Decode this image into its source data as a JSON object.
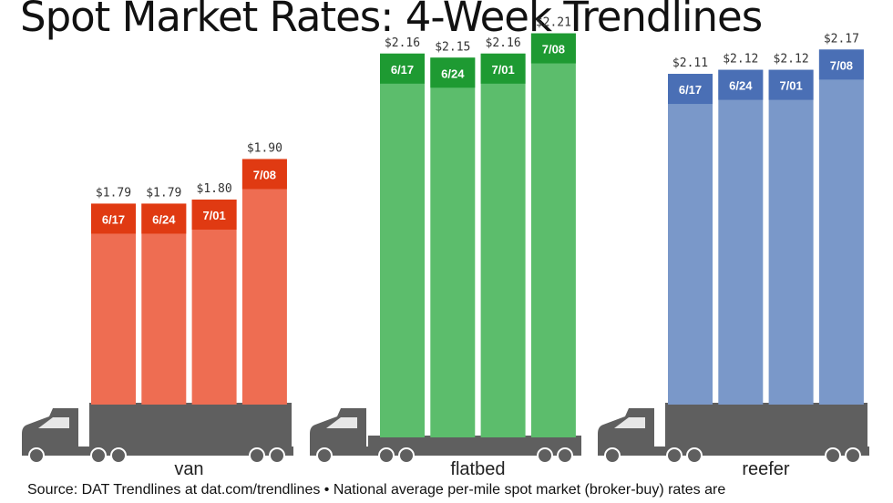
{
  "title": "Spot Market Rates: 4-Week Trendlines",
  "source": "Source: DAT Trendlines at dat.com/trendlines • National average per-mile spot market (broker-buy) rates are",
  "chart_data": {
    "type": "bar",
    "title": "Spot Market Rates: 4-Week Trendlines",
    "units": "USD per mile",
    "groups": [
      {
        "name": "van",
        "color": "#ee6d52",
        "label_color": "#e03a12",
        "bars": [
          {
            "week": "6/17",
            "value": 1.79,
            "label": "$1.79"
          },
          {
            "week": "6/24",
            "value": 1.79,
            "label": "$1.79"
          },
          {
            "week": "7/01",
            "value": 1.8,
            "label": "$1.80"
          },
          {
            "week": "7/08",
            "value": 1.9,
            "label": "$1.90"
          }
        ]
      },
      {
        "name": "flatbed",
        "color": "#5cbd6c",
        "label_color": "#1e9a32",
        "bars": [
          {
            "week": "6/17",
            "value": 2.16,
            "label": "$2.16"
          },
          {
            "week": "6/24",
            "value": 2.15,
            "label": "$2.15"
          },
          {
            "week": "7/01",
            "value": 2.16,
            "label": "$2.16"
          },
          {
            "week": "7/08",
            "value": 2.21,
            "label": "$2.21"
          }
        ]
      },
      {
        "name": "reefer",
        "color": "#7a98c9",
        "label_color": "#4a6fb5",
        "bars": [
          {
            "week": "6/17",
            "value": 2.11,
            "label": "$2.11"
          },
          {
            "week": "6/24",
            "value": 2.12,
            "label": "$2.12"
          },
          {
            "week": "7/01",
            "value": 2.12,
            "label": "$2.12"
          },
          {
            "week": "7/08",
            "value": 2.17,
            "label": "$2.17"
          }
        ]
      }
    ],
    "icons": [
      "truck-cab-icon",
      "trailer-icon"
    ],
    "truck_color": "#5f5f5f"
  }
}
